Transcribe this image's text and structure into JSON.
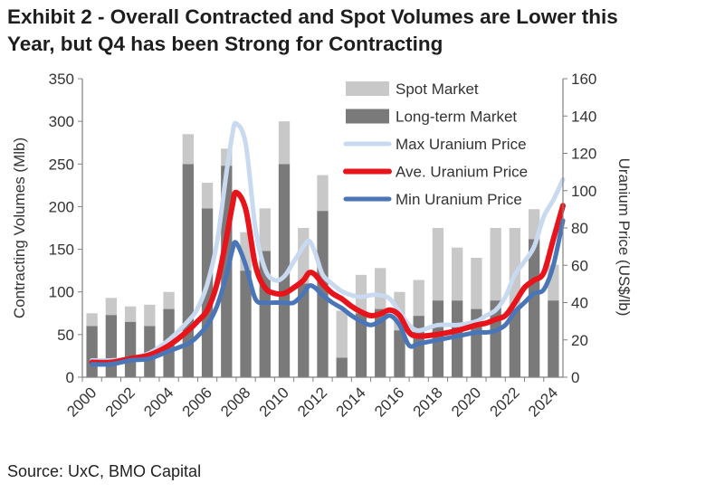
{
  "title_line1": "Exhibit 2 - Overall Contracted and Spot Volumes are Lower this",
  "title_line2": "Year, but Q4 has been Strong for Contracting",
  "source": "Source: UxC, BMO Capital",
  "chart_data": {
    "type": "bar",
    "stacked": true,
    "categories": [
      2000,
      2001,
      2002,
      2003,
      2004,
      2005,
      2006,
      2007,
      2008,
      2009,
      2010,
      2011,
      2012,
      2013,
      2014,
      2015,
      2016,
      2017,
      2018,
      2019,
      2020,
      2021,
      2022,
      2023,
      2024
    ],
    "xtick_labels": [
      "2000",
      "2002",
      "2004",
      "2006",
      "2008",
      "2010",
      "2012",
      "2014",
      "2016",
      "2018",
      "2020",
      "2022",
      "2024"
    ],
    "ylabel": "Contracting Volumes (Mlb)",
    "y2label": "Uranium Price (US$/lb)",
    "ylim": [
      0,
      350
    ],
    "yticks": [
      0,
      50,
      100,
      150,
      200,
      250,
      300,
      350
    ],
    "y2lim": [
      0,
      160
    ],
    "y2ticks": [
      0,
      20,
      40,
      60,
      80,
      100,
      120,
      140,
      160
    ],
    "series": [
      {
        "name": "Long-term Market",
        "axis": "left",
        "color": "#7a7a7a",
        "values": [
          60,
          73,
          65,
          60,
          80,
          250,
          198,
          248,
          125,
          148,
          250,
          110,
          195,
          23,
          75,
          80,
          55,
          72,
          90,
          90,
          80,
          90,
          80,
          162,
          90
        ]
      },
      {
        "name": "Spot Market",
        "axis": "left",
        "color": "#c8c8c8",
        "values": [
          15,
          20,
          18,
          25,
          20,
          35,
          30,
          20,
          45,
          50,
          50,
          65,
          42,
          55,
          45,
          48,
          45,
          42,
          85,
          62,
          60,
          85,
          95,
          35,
          42
        ]
      }
    ],
    "lines": [
      {
        "name": "Max Uranium Price",
        "axis": "right",
        "color": "#c9d9ef",
        "width": 5,
        "x": [
          2000,
          2001,
          2002,
          2003,
          2004,
          2005,
          2005.5,
          2006,
          2006.5,
          2007,
          2007.3,
          2007.5,
          2008,
          2008.5,
          2009,
          2009.5,
          2010,
          2010.5,
          2011,
          2011.3,
          2011.6,
          2012,
          2012.5,
          2013,
          2013.5,
          2014,
          2014.5,
          2015,
          2015.5,
          2016,
          2016.5,
          2017,
          2018,
          2019,
          2020,
          2020.5,
          2021,
          2021.5,
          2022,
          2022.5,
          2023,
          2023.5,
          2024,
          2024.5
        ],
        "y": [
          9,
          9,
          10,
          13,
          20,
          30,
          37,
          50,
          72,
          110,
          130,
          136,
          125,
          80,
          58,
          52,
          54,
          62,
          70,
          73,
          67,
          55,
          50,
          46,
          44,
          43,
          44,
          44,
          42,
          35,
          28,
          25,
          28,
          28,
          30,
          33,
          36,
          43,
          55,
          62,
          70,
          86,
          95,
          106
        ]
      },
      {
        "name": "Ave. Uranium Price",
        "axis": "right",
        "color": "#e8141b",
        "width": 6,
        "x": [
          2000,
          2001,
          2002,
          2003,
          2004,
          2005,
          2005.5,
          2006,
          2006.5,
          2007,
          2007.3,
          2007.5,
          2008,
          2008.5,
          2009,
          2009.5,
          2010,
          2010.5,
          2011,
          2011.3,
          2011.6,
          2012,
          2012.5,
          2013,
          2013.5,
          2014,
          2014.5,
          2015,
          2015.5,
          2016,
          2016.5,
          2017,
          2018,
          2019,
          2020,
          2020.5,
          2021,
          2021.5,
          2022,
          2022.5,
          2023,
          2023.5,
          2024,
          2024.5
        ],
        "y": [
          8,
          8,
          10,
          12,
          17,
          25,
          30,
          36,
          50,
          75,
          92,
          99,
          90,
          60,
          48,
          45,
          45,
          48,
          52,
          56,
          55,
          50,
          45,
          42,
          38,
          35,
          33,
          34,
          36,
          33,
          24,
          22,
          23,
          25,
          28,
          29,
          31,
          33,
          40,
          48,
          52,
          56,
          74,
          92
        ]
      },
      {
        "name": "Min Uranium Price",
        "axis": "right",
        "color": "#4a76b8",
        "width": 5,
        "x": [
          2000,
          2001,
          2002,
          2003,
          2004,
          2005,
          2005.5,
          2006,
          2006.5,
          2007,
          2007.3,
          2007.5,
          2008,
          2008.5,
          2009,
          2009.5,
          2010,
          2010.5,
          2011,
          2011.3,
          2011.6,
          2012,
          2012.5,
          2013,
          2013.5,
          2014,
          2014.5,
          2015,
          2015.5,
          2016,
          2016.5,
          2017,
          2018,
          2019,
          2020,
          2020.5,
          2021,
          2021.5,
          2022,
          2022.5,
          2023,
          2023.5,
          2024,
          2024.5
        ],
        "y": [
          7,
          7,
          9,
          10,
          14,
          18,
          22,
          28,
          38,
          55,
          68,
          72,
          60,
          42,
          40,
          40,
          40,
          40,
          45,
          49,
          48,
          44,
          40,
          37,
          33,
          30,
          28,
          30,
          33,
          28,
          17,
          18,
          20,
          22,
          24,
          24,
          25,
          28,
          35,
          40,
          45,
          47,
          60,
          84
        ]
      }
    ],
    "legend": [
      "Spot Market",
      "Long-term Market",
      "Max Uranium Price",
      "Ave. Uranium Price",
      "Min Uranium Price"
    ],
    "legend_position": "top-right",
    "grid": false
  }
}
